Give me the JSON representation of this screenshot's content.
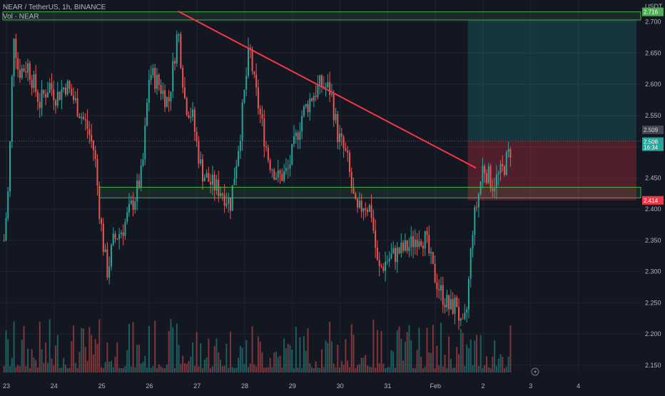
{
  "header": {
    "symbol_line": "NEAR / TetherUS, 1h, BINANCE",
    "volume_line": "Vol · NEAR"
  },
  "colors": {
    "background": "#131722",
    "grid": "#1f2430",
    "up": "#26a69a",
    "down": "#ef5350",
    "trendline": "#f23645",
    "zone_border": "#4caf50",
    "zone_fill": "rgba(76,175,80,0.12)",
    "target_fill": "rgba(38,166,154,0.22)",
    "stop_fill": "rgba(242,54,69,0.28)"
  },
  "chart_data": {
    "type": "candlestick",
    "pair": "NEAR / TetherUS",
    "timeframe": "1h",
    "exchange": "BINANCE",
    "price_unit": "USDT",
    "y_range": [
      2.12,
      2.735
    ],
    "y_ticks": [
      "2.700",
      "2.650",
      "2.600",
      "2.550",
      "2.500",
      "2.450",
      "2.400",
      "2.350",
      "2.300",
      "2.250",
      "2.200",
      "2.150"
    ],
    "x_ticks": [
      "23",
      "24",
      "25",
      "26",
      "27",
      "28",
      "29",
      "30",
      "31",
      "Feb",
      "2",
      "3",
      "4"
    ],
    "price_labels": {
      "resistance": "2.716",
      "support": "2.414",
      "last": "2.508",
      "countdown": "16:34",
      "entry": "2.509"
    },
    "resistance_zone": [
      2.703,
      2.716
    ],
    "support_zone": [
      2.418,
      2.435
    ],
    "trendline": {
      "start_day": 26.6,
      "start_price": 2.717,
      "end_day": 32.85,
      "end_price": 2.466
    },
    "position": {
      "start_day": 32.68,
      "entry": 2.509,
      "target": 2.703,
      "stop": 2.414
    },
    "price_path": [
      [
        22.95,
        2.35
      ],
      [
        23.05,
        2.44
      ],
      [
        23.15,
        2.69
      ],
      [
        23.25,
        2.62
      ],
      [
        23.45,
        2.63
      ],
      [
        23.7,
        2.57
      ],
      [
        23.9,
        2.6
      ],
      [
        24.05,
        2.58
      ],
      [
        24.25,
        2.6
      ],
      [
        24.45,
        2.57
      ],
      [
        24.7,
        2.53
      ],
      [
        24.85,
        2.49
      ],
      [
        24.95,
        2.4
      ],
      [
        25.05,
        2.33
      ],
      [
        25.12,
        2.3
      ],
      [
        25.25,
        2.35
      ],
      [
        25.45,
        2.37
      ],
      [
        25.7,
        2.42
      ],
      [
        25.85,
        2.46
      ],
      [
        26.0,
        2.62
      ],
      [
        26.2,
        2.6
      ],
      [
        26.4,
        2.57
      ],
      [
        26.6,
        2.69
      ],
      [
        26.75,
        2.57
      ],
      [
        26.9,
        2.55
      ],
      [
        27.0,
        2.5
      ],
      [
        27.1,
        2.46
      ],
      [
        27.3,
        2.44
      ],
      [
        27.5,
        2.43
      ],
      [
        27.7,
        2.41
      ],
      [
        27.9,
        2.52
      ],
      [
        28.0,
        2.59
      ],
      [
        28.1,
        2.66
      ],
      [
        28.2,
        2.6
      ],
      [
        28.35,
        2.54
      ],
      [
        28.5,
        2.48
      ],
      [
        28.7,
        2.45
      ],
      [
        28.9,
        2.46
      ],
      [
        29.0,
        2.49
      ],
      [
        29.2,
        2.55
      ],
      [
        29.4,
        2.58
      ],
      [
        29.6,
        2.6
      ],
      [
        29.8,
        2.59
      ],
      [
        29.95,
        2.52
      ],
      [
        30.05,
        2.5
      ],
      [
        30.15,
        2.48
      ],
      [
        30.25,
        2.43
      ],
      [
        30.35,
        2.39
      ],
      [
        30.5,
        2.41
      ],
      [
        30.65,
        2.4
      ],
      [
        30.8,
        2.3
      ],
      [
        31.0,
        2.32
      ],
      [
        31.2,
        2.33
      ],
      [
        31.45,
        2.34
      ],
      [
        31.65,
        2.36
      ],
      [
        31.8,
        2.35
      ],
      [
        31.95,
        2.3
      ],
      [
        32.1,
        2.27
      ],
      [
        32.3,
        2.24
      ],
      [
        32.45,
        2.25
      ],
      [
        32.55,
        2.2
      ],
      [
        32.65,
        2.23
      ],
      [
        32.78,
        2.37
      ],
      [
        32.9,
        2.42
      ],
      [
        33.0,
        2.47
      ],
      [
        33.2,
        2.44
      ],
      [
        33.4,
        2.46
      ],
      [
        33.6,
        2.5
      ]
    ]
  }
}
